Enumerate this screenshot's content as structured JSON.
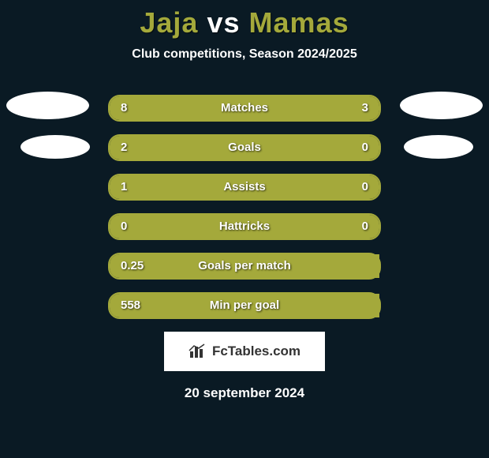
{
  "colors": {
    "background": "#0a1a24",
    "accent": "#a4a93b",
    "text": "#ffffff",
    "badge": "#ffffff",
    "logo_bg": "#ffffff",
    "logo_fg": "#333333"
  },
  "title": {
    "player1": "Jaja",
    "vs": "vs",
    "player2": "Mamas"
  },
  "subtitle": "Club competitions, Season 2024/2025",
  "stats": [
    {
      "label": "Matches",
      "val_left": "8",
      "val_right": "3",
      "fill_left_pct": 70,
      "fill_right_pct": 30
    },
    {
      "label": "Goals",
      "val_left": "2",
      "val_right": "0",
      "fill_left_pct": 76,
      "fill_right_pct": 24
    },
    {
      "label": "Assists",
      "val_left": "1",
      "val_right": "0",
      "fill_left_pct": 76,
      "fill_right_pct": 24
    },
    {
      "label": "Hattricks",
      "val_left": "0",
      "val_right": "0",
      "fill_left_pct": 50,
      "fill_right_pct": 50
    },
    {
      "label": "Goals per match",
      "val_left": "0.25",
      "val_right": "",
      "fill_left_pct": 100,
      "fill_right_pct": 0
    },
    {
      "label": "Min per goal",
      "val_left": "558",
      "val_right": "",
      "fill_left_pct": 100,
      "fill_right_pct": 0
    }
  ],
  "logo_text": "FcTables.com",
  "date": "20 september 2024"
}
